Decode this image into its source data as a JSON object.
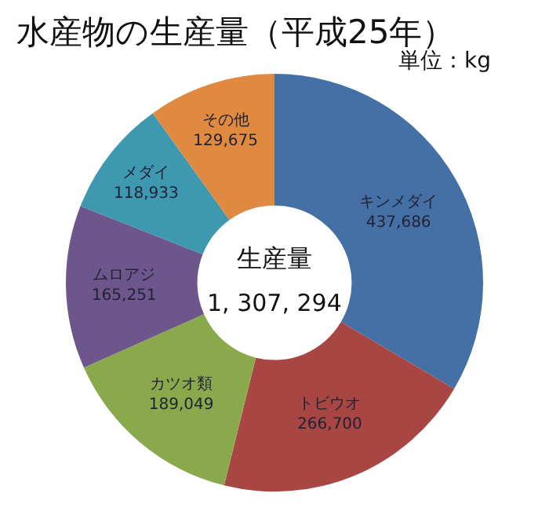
{
  "chart_data": {
    "type": "donut",
    "title": "水産物の生産量（平成25年）",
    "subtitle": "単位：kg",
    "categories": [
      "キンメダイ",
      "トビウオ",
      "カツオ類",
      "ムロアジ",
      "メダイ",
      "その他"
    ],
    "values": [
      437686,
      266700,
      189049,
      165251,
      118933,
      129675
    ],
    "value_labels": [
      "437,686",
      "266,700",
      "189,049",
      "165,251",
      "118,933",
      "129,675"
    ],
    "colors": [
      "#4470a6",
      "#a84644",
      "#8aa84c",
      "#6d568c",
      "#3e98b0",
      "#df8a40"
    ],
    "annotations": [
      "生産量",
      "1, 307, 294"
    ],
    "legend": false
  }
}
